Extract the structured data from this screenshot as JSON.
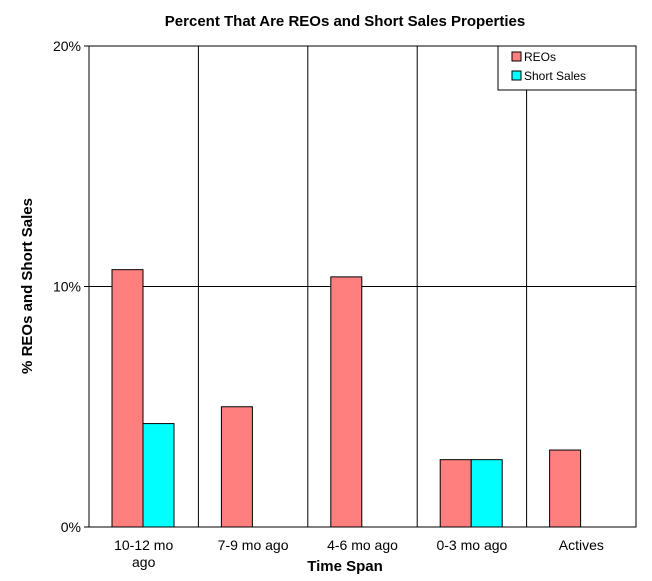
{
  "chart_data": {
    "type": "bar",
    "title": "Percent That Are REOs and Short Sales Properties",
    "xlabel": "Time Span",
    "ylabel": "% REOs and Short Sales",
    "categories": [
      "10-12 mo ago",
      "7-9 mo ago",
      "4-6 mo ago",
      "0-3 mo ago",
      "Actives"
    ],
    "category_label_lines": [
      [
        "10-12 mo",
        "ago"
      ],
      [
        "7-9 mo ago"
      ],
      [
        "4-6 mo ago"
      ],
      [
        "0-3 mo ago"
      ],
      [
        "Actives"
      ]
    ],
    "series": [
      {
        "name": "REOs",
        "values": [
          10.7,
          5.0,
          10.4,
          2.8,
          3.2
        ],
        "color": "#ff7f7f"
      },
      {
        "name": "Short Sales",
        "values": [
          4.3,
          0,
          0,
          2.8,
          0
        ],
        "color": "#00ffff"
      }
    ],
    "ylim": [
      0,
      20
    ],
    "yticks": [
      0,
      10,
      20
    ],
    "ytick_labels": [
      "0%",
      "10%",
      "20%"
    ],
    "grid": true,
    "legend_position": "top-right"
  }
}
